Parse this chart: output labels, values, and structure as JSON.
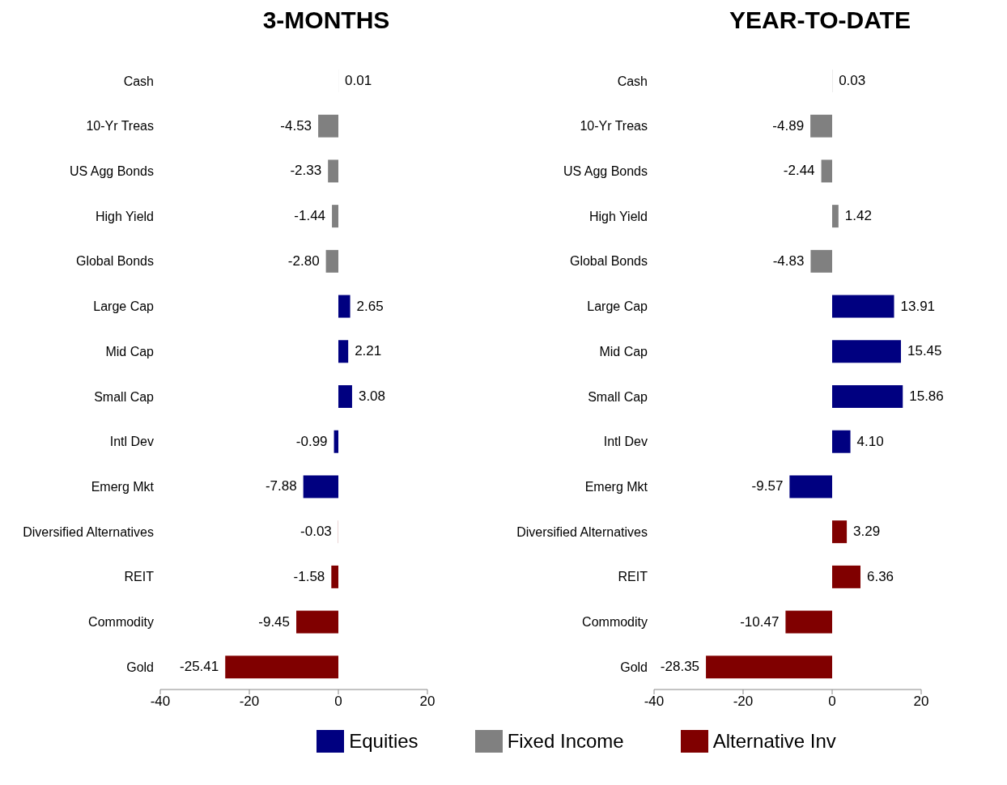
{
  "chart_data": [
    {
      "type": "bar",
      "orientation": "horizontal",
      "stacked": true,
      "title": "3-MONTHS",
      "legend": "bottom",
      "categories": [
        "Cash",
        "10-Yr Treas",
        "US Agg Bonds",
        "High Yield",
        "Global Bonds",
        "Large Cap",
        "Mid Cap",
        "Small Cap",
        "Intl Dev",
        "Emerg Mkt",
        "Diversified Alternatives",
        "REIT",
        "Commodity",
        "Gold"
      ],
      "xlim": [
        -40,
        20
      ],
      "xticks": [
        -40,
        -20,
        0,
        20
      ],
      "series": [
        {
          "name": "Equities",
          "color": "#000080",
          "values": [
            null,
            null,
            null,
            null,
            null,
            2.65,
            2.21,
            3.08,
            -0.99,
            -7.88,
            null,
            null,
            null,
            null
          ],
          "value_labels": [
            null,
            null,
            null,
            null,
            null,
            "2.65",
            "2.21",
            "3.08",
            "-0.99",
            "-7.88",
            null,
            null,
            null,
            null
          ]
        },
        {
          "name": "Fixed Income",
          "color": "#808080",
          "values": [
            0.01,
            -4.53,
            -2.33,
            -1.44,
            -2.8,
            null,
            null,
            null,
            null,
            null,
            null,
            null,
            null,
            null
          ],
          "value_labels": [
            "0.01",
            "-4.53",
            "-2.33",
            "-1.44",
            "-2.80",
            null,
            null,
            null,
            null,
            null,
            null,
            null,
            null,
            null
          ]
        },
        {
          "name": "Alternative Inv",
          "color": "#800000",
          "values": [
            null,
            null,
            null,
            null,
            null,
            null,
            null,
            null,
            null,
            null,
            -0.03,
            -1.58,
            -9.45,
            -25.41
          ],
          "value_labels": [
            null,
            null,
            null,
            null,
            null,
            null,
            null,
            null,
            null,
            null,
            "-0.03",
            "-1.58",
            "-9.45",
            "-25.41"
          ]
        }
      ]
    },
    {
      "type": "bar",
      "orientation": "horizontal",
      "stacked": true,
      "title": "YEAR-TO-DATE",
      "categories": [
        "Cash",
        "10-Yr Treas",
        "US Agg Bonds",
        "High Yield",
        "Global Bonds",
        "Large Cap",
        "Mid Cap",
        "Small Cap",
        "Intl Dev",
        "Emerg Mkt",
        "Diversified Alternatives",
        "REIT",
        "Commodity",
        "Gold"
      ],
      "xlim": [
        -40,
        20
      ],
      "xticks": [
        -40,
        -20,
        0,
        20
      ],
      "series": [
        {
          "color": "#000080",
          "values": [
            null,
            null,
            null,
            null,
            null,
            13.91,
            15.45,
            15.86,
            4.1,
            -9.57,
            null,
            null,
            null,
            null
          ],
          "value_labels": [
            null,
            null,
            null,
            null,
            null,
            "13.91",
            "15.45",
            "15.86",
            "4.10",
            "-9.57",
            null,
            null,
            null,
            null
          ]
        },
        {
          "color": "#808080",
          "values": [
            0.03,
            -4.89,
            -2.44,
            1.42,
            -4.83,
            null,
            null,
            null,
            null,
            null,
            null,
            null,
            null,
            null
          ],
          "value_labels": [
            "0.03",
            "-4.89",
            "-2.44",
            "1.42",
            "-4.83",
            null,
            null,
            null,
            null,
            null,
            null,
            null,
            null,
            null
          ]
        },
        {
          "color": "#800000",
          "values": [
            null,
            null,
            null,
            null,
            null,
            null,
            null,
            null,
            null,
            null,
            3.29,
            6.36,
            -10.47,
            -28.35
          ],
          "value_labels": [
            null,
            null,
            null,
            null,
            null,
            null,
            null,
            null,
            null,
            null,
            "3.29",
            "6.36",
            "-10.47",
            "-28.35"
          ]
        }
      ]
    }
  ]
}
